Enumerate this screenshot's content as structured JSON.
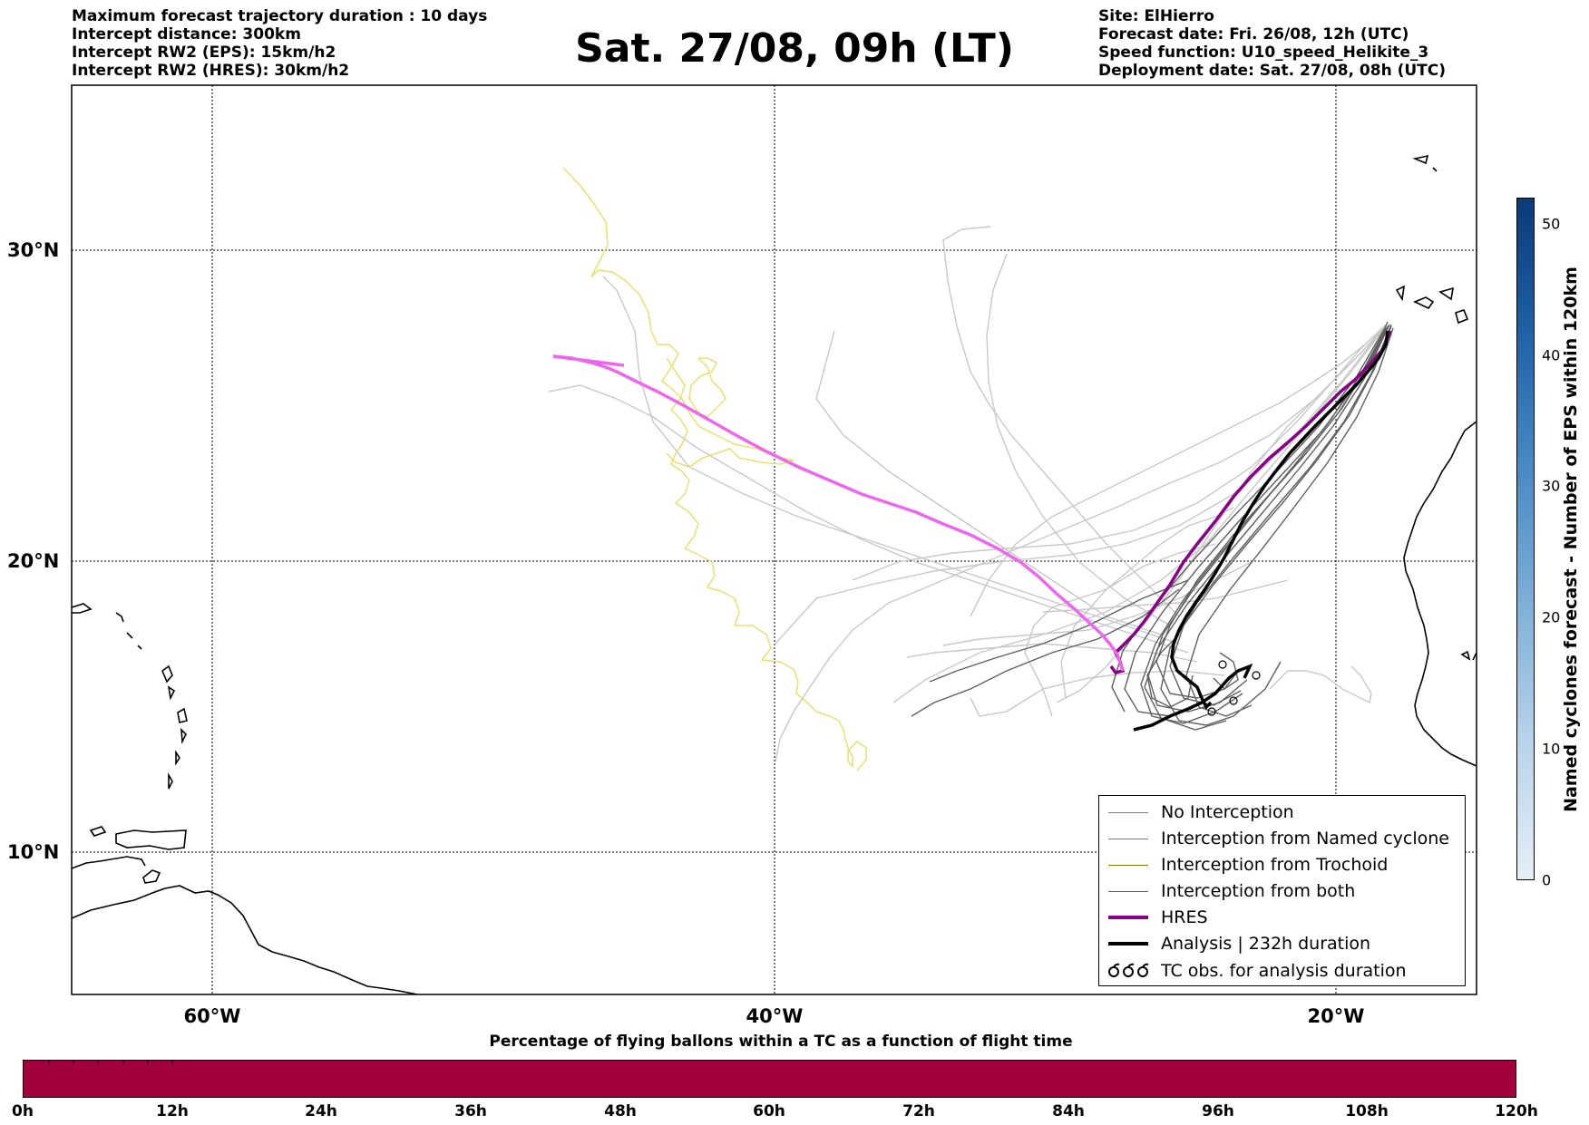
{
  "header": {
    "left_lines": [
      "Maximum forecast trajectory duration : 10 days",
      "Intercept distance: 300km",
      "Intercept RW2 (EPS):  15km/h2",
      "Intercept RW2 (HRES): 30km/h2"
    ],
    "title": "Sat. 27/08, 09h (LT)",
    "right_lines": [
      "Site: ElHierro",
      "Forecast date: Fri. 26/08, 12h (UTC)",
      "Speed function: U10_speed_Helikite_3",
      "Deployment date: Sat. 27/08, 08h (UTC)"
    ]
  },
  "map": {
    "lat_labels": [
      "30°N",
      "20°N",
      "10°N"
    ],
    "lon_labels": [
      "60°W",
      "40°W",
      "20°W"
    ],
    "colors": {
      "eps_light": "#c8c8c8",
      "eps_dark": "#606060",
      "hres_west": "#ee66ee",
      "hres_east": "#880088",
      "analysis": "#000000",
      "tc_track": "#e8e070"
    }
  },
  "legend": {
    "items": [
      {
        "label": "No Interception",
        "color": "#808080",
        "icon": "line"
      },
      {
        "label": "Interception from Named cyclone",
        "color": "#ee5522",
        "icon": "line"
      },
      {
        "label": "Interception from Trochoid",
        "color": "#808000",
        "icon": "line"
      },
      {
        "label": "Interception from both",
        "color": "#228822",
        "icon": "line"
      },
      {
        "label": "HRES",
        "color": "#880088",
        "icon": "thick-line"
      },
      {
        "label": "Analysis | 232h duration",
        "color": "#000000",
        "icon": "thick-line"
      },
      {
        "label": "TC obs. for analysis duration",
        "color": "#000000",
        "icon": "cyclone-symbols"
      }
    ]
  },
  "percentage_bar": {
    "title": "Percentage of flying ballons within a TC as a function of flight time",
    "color": "#a0003c",
    "ticks": [
      "0h",
      "12h",
      "24h",
      "36h",
      "48h",
      "60h",
      "72h",
      "84h",
      "96h",
      "108h",
      "120h"
    ]
  },
  "colorbar": {
    "label": "Named cyclones forecast - Number of EPS within 120km",
    "ticks": [
      "0",
      "10",
      "20",
      "30",
      "40",
      "50"
    ],
    "color_low": "#e6eef8",
    "color_high": "#0a3a78"
  }
}
